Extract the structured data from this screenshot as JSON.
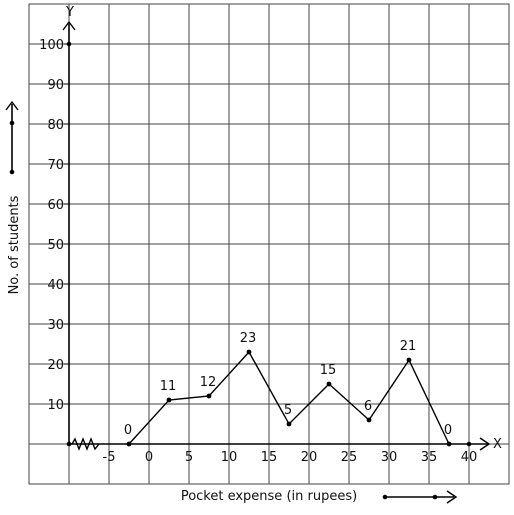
{
  "chart_data": {
    "type": "line",
    "title": "",
    "xlabel": "Pocket expense (in rupees)",
    "ylabel": "No. of students",
    "x_axis_letter": "X",
    "y_axis_letter": "Y",
    "x_ticks": [
      "-5",
      "0",
      "5",
      "10",
      "15",
      "20",
      "25",
      "30",
      "35",
      "40"
    ],
    "y_ticks": [
      "10",
      "20",
      "30",
      "40",
      "50",
      "60",
      "70",
      "80",
      "90",
      "100"
    ],
    "xlim": [
      -10,
      40
    ],
    "ylim": [
      0,
      100
    ],
    "grid": true,
    "series": [
      {
        "x": [
          -2.5,
          2.5,
          7.5,
          12.5,
          17.5,
          22.5,
          27.5,
          32.5,
          37.5
        ],
        "y": [
          0,
          11,
          12,
          23,
          5,
          15,
          6,
          21,
          0
        ],
        "labels": [
          "0",
          "11",
          "12",
          "23",
          "5",
          "15",
          "6",
          "21",
          "0"
        ]
      }
    ]
  }
}
